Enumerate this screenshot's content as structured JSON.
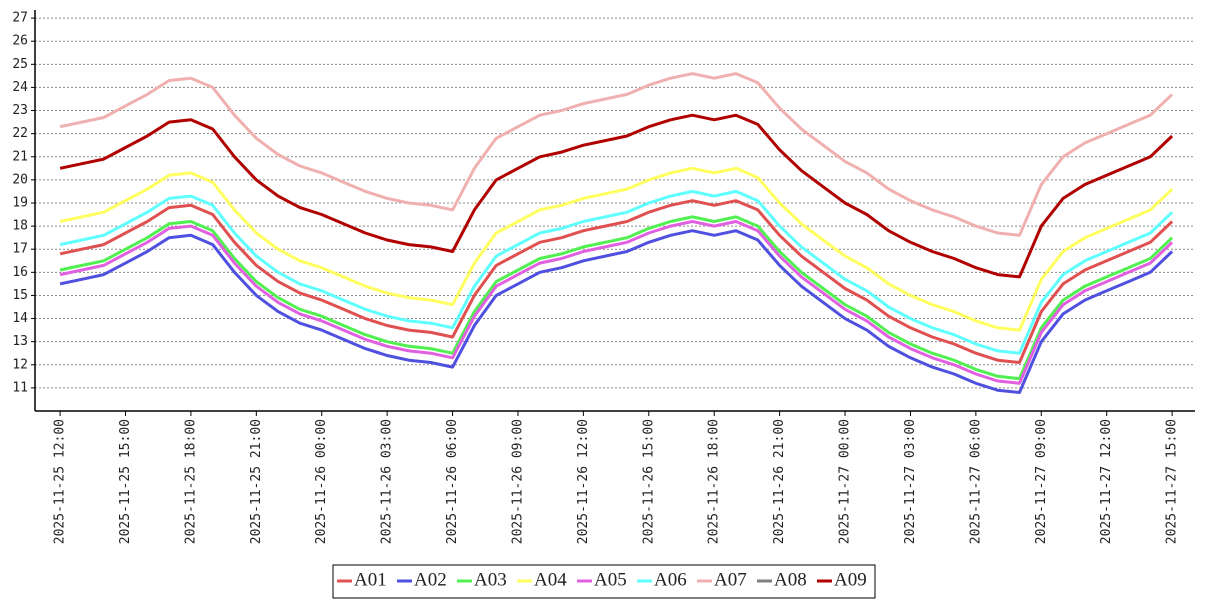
{
  "chart_data": {
    "type": "line",
    "x": [
      "2025-11-25 12:00",
      "2025-11-25 13:00",
      "2025-11-25 14:00",
      "2025-11-25 15:00",
      "2025-11-25 16:00",
      "2025-11-25 17:00",
      "2025-11-25 18:00",
      "2025-11-25 19:00",
      "2025-11-25 20:00",
      "2025-11-25 21:00",
      "2025-11-25 22:00",
      "2025-11-25 23:00",
      "2025-11-26 00:00",
      "2025-11-26 01:00",
      "2025-11-26 02:00",
      "2025-11-26 03:00",
      "2025-11-26 04:00",
      "2025-11-26 05:00",
      "2025-11-26 06:00",
      "2025-11-26 07:00",
      "2025-11-26 08:00",
      "2025-11-26 09:00",
      "2025-11-26 10:00",
      "2025-11-26 11:00",
      "2025-11-26 12:00",
      "2025-11-26 13:00",
      "2025-11-26 14:00",
      "2025-11-26 15:00",
      "2025-11-26 16:00",
      "2025-11-26 17:00",
      "2025-11-26 18:00",
      "2025-11-26 19:00",
      "2025-11-26 20:00",
      "2025-11-26 21:00",
      "2025-11-26 22:00",
      "2025-11-26 23:00",
      "2025-11-27 00:00",
      "2025-11-27 01:00",
      "2025-11-27 02:00",
      "2025-11-27 03:00",
      "2025-11-27 04:00",
      "2025-11-27 05:00",
      "2025-11-27 06:00",
      "2025-11-27 07:00",
      "2025-11-27 08:00",
      "2025-11-27 09:00",
      "2025-11-27 10:00",
      "2025-11-27 11:00",
      "2025-11-27 12:00",
      "2025-11-27 13:00",
      "2025-11-27 14:00",
      "2025-11-27 15:00"
    ],
    "series": [
      {
        "name": "A01",
        "color": "#e05050",
        "values": [
          16.8,
          17.0,
          17.2,
          17.7,
          18.2,
          18.8,
          18.9,
          18.5,
          17.3,
          16.3,
          15.6,
          15.1,
          14.8,
          14.4,
          14.0,
          13.7,
          13.5,
          13.4,
          13.2,
          15.0,
          16.3,
          16.8,
          17.3,
          17.5,
          17.8,
          18.0,
          18.2,
          18.6,
          18.9,
          19.1,
          18.9,
          19.1,
          18.7,
          17.6,
          16.7,
          16.0,
          15.3,
          14.8,
          14.1,
          13.6,
          13.2,
          12.9,
          12.5,
          12.2,
          12.1,
          14.3,
          15.5,
          16.1,
          16.5,
          16.9,
          17.3,
          18.2
        ]
      },
      {
        "name": "A02",
        "color": "#5050e0",
        "values": [
          15.5,
          15.7,
          15.9,
          16.4,
          16.9,
          17.5,
          17.6,
          17.2,
          16.0,
          15.0,
          14.3,
          13.8,
          13.5,
          13.1,
          12.7,
          12.4,
          12.2,
          12.1,
          11.9,
          13.7,
          15.0,
          15.5,
          16.0,
          16.2,
          16.5,
          16.7,
          16.9,
          17.3,
          17.6,
          17.8,
          17.6,
          17.8,
          17.4,
          16.3,
          15.4,
          14.7,
          14.0,
          13.5,
          12.8,
          12.3,
          11.9,
          11.6,
          11.2,
          10.9,
          10.8,
          13.0,
          14.2,
          14.8,
          15.2,
          15.6,
          16.0,
          16.9
        ]
      },
      {
        "name": "A03",
        "color": "#50f050",
        "values": [
          16.1,
          16.3,
          16.5,
          17.0,
          17.5,
          18.1,
          18.2,
          17.8,
          16.6,
          15.6,
          14.9,
          14.4,
          14.1,
          13.7,
          13.3,
          13.0,
          12.8,
          12.7,
          12.5,
          14.3,
          15.6,
          16.1,
          16.6,
          16.8,
          17.1,
          17.3,
          17.5,
          17.9,
          18.2,
          18.4,
          18.2,
          18.4,
          18.0,
          16.9,
          16.0,
          15.3,
          14.6,
          14.1,
          13.4,
          12.9,
          12.5,
          12.2,
          11.8,
          11.5,
          11.4,
          13.6,
          14.8,
          15.4,
          15.8,
          16.2,
          16.6,
          17.5
        ]
      },
      {
        "name": "A04",
        "color": "#ffff60",
        "values": [
          18.2,
          18.4,
          18.6,
          19.1,
          19.6,
          20.2,
          20.3,
          19.9,
          18.7,
          17.7,
          17.0,
          16.5,
          16.2,
          15.8,
          15.4,
          15.1,
          14.9,
          14.8,
          14.6,
          16.4,
          17.7,
          18.2,
          18.7,
          18.9,
          19.2,
          19.4,
          19.6,
          20.0,
          20.3,
          20.5,
          20.3,
          20.5,
          20.1,
          19.0,
          18.1,
          17.4,
          16.7,
          16.2,
          15.5,
          15.0,
          14.6,
          14.3,
          13.9,
          13.6,
          13.5,
          15.7,
          16.9,
          17.5,
          17.9,
          18.3,
          18.7,
          19.6
        ]
      },
      {
        "name": "A05",
        "color": "#e060e0",
        "values": [
          15.9,
          16.1,
          16.3,
          16.8,
          17.3,
          17.9,
          18.0,
          17.6,
          16.4,
          15.4,
          14.7,
          14.2,
          13.9,
          13.5,
          13.1,
          12.8,
          12.6,
          12.5,
          12.3,
          14.1,
          15.4,
          15.9,
          16.4,
          16.6,
          16.9,
          17.1,
          17.3,
          17.7,
          18.0,
          18.2,
          18.0,
          18.2,
          17.8,
          16.7,
          15.8,
          15.1,
          14.4,
          13.9,
          13.2,
          12.7,
          12.3,
          12.0,
          11.6,
          11.3,
          11.2,
          13.4,
          14.6,
          15.2,
          15.6,
          16.0,
          16.4,
          17.3
        ]
      },
      {
        "name": "A06",
        "color": "#60ffff",
        "values": [
          17.2,
          17.4,
          17.6,
          18.1,
          18.6,
          19.2,
          19.3,
          18.9,
          17.7,
          16.7,
          16.0,
          15.5,
          15.2,
          14.8,
          14.4,
          14.1,
          13.9,
          13.8,
          13.6,
          15.4,
          16.7,
          17.2,
          17.7,
          17.9,
          18.2,
          18.4,
          18.6,
          19.0,
          19.3,
          19.5,
          19.3,
          19.5,
          19.1,
          18.0,
          17.1,
          16.4,
          15.7,
          15.2,
          14.5,
          14.0,
          13.6,
          13.3,
          12.9,
          12.6,
          12.5,
          14.7,
          15.9,
          16.5,
          16.9,
          17.3,
          17.7,
          18.6
        ]
      },
      {
        "name": "A07",
        "color": "#f0b0b0",
        "values": [
          22.3,
          22.5,
          22.7,
          23.2,
          23.7,
          24.3,
          24.4,
          24.0,
          22.8,
          21.8,
          21.1,
          20.6,
          20.3,
          19.9,
          19.5,
          19.2,
          19.0,
          18.9,
          18.7,
          20.5,
          21.8,
          22.3,
          22.8,
          23.0,
          23.3,
          23.5,
          23.7,
          24.1,
          24.4,
          24.6,
          24.4,
          24.6,
          24.2,
          23.1,
          22.2,
          21.5,
          20.8,
          20.3,
          19.6,
          19.1,
          18.7,
          18.4,
          18.0,
          17.7,
          17.6,
          19.8,
          21.0,
          21.6,
          22.0,
          22.4,
          22.8,
          23.7
        ]
      },
      {
        "name": "A08",
        "color": "#808080",
        "values": [
          null,
          null,
          null,
          null,
          null,
          null,
          null,
          null,
          null,
          null,
          null,
          null,
          null,
          null,
          null,
          null,
          null,
          null,
          null,
          null,
          null,
          null,
          null,
          null,
          null,
          null,
          null,
          null,
          null,
          null,
          null,
          null,
          null,
          null,
          null,
          null,
          null,
          null,
          null,
          null,
          null,
          null,
          null,
          null,
          null,
          null,
          null,
          null,
          null,
          null,
          null,
          null
        ]
      },
      {
        "name": "A09",
        "color": "#b00000",
        "values": [
          20.5,
          20.7,
          20.9,
          21.4,
          21.9,
          22.5,
          22.6,
          22.2,
          21.0,
          20.0,
          19.3,
          18.8,
          18.5,
          18.1,
          17.7,
          17.4,
          17.2,
          17.1,
          16.9,
          18.7,
          20.0,
          20.5,
          21.0,
          21.2,
          21.5,
          21.7,
          21.9,
          22.3,
          22.6,
          22.8,
          22.6,
          22.8,
          22.4,
          21.3,
          20.4,
          19.7,
          19.0,
          18.5,
          17.8,
          17.3,
          16.9,
          16.6,
          16.2,
          15.9,
          15.8,
          18.0,
          19.2,
          19.8,
          20.2,
          20.6,
          21.0,
          21.9
        ]
      }
    ],
    "xlim": [
      "2025-11-25 10:51",
      "2025-11-27 16:03"
    ],
    "xticks": [
      "2025-11-25 12:00",
      "2025-11-25 15:00",
      "2025-11-25 18:00",
      "2025-11-25 21:00",
      "2025-11-26 00:00",
      "2025-11-26 03:00",
      "2025-11-26 06:00",
      "2025-11-26 09:00",
      "2025-11-26 12:00",
      "2025-11-26 15:00",
      "2025-11-26 18:00",
      "2025-11-26 21:00",
      "2025-11-27 00:00",
      "2025-11-27 03:00",
      "2025-11-27 06:00",
      "2025-11-27 09:00",
      "2025-11-27 12:00",
      "2025-11-27 15:00"
    ],
    "ylim": [
      10,
      27.35
    ],
    "yticks": [
      11,
      12,
      13,
      14,
      15,
      16,
      17,
      18,
      19,
      20,
      21,
      22,
      23,
      24,
      25,
      26,
      27
    ],
    "grid": true,
    "legend": "bottom"
  }
}
